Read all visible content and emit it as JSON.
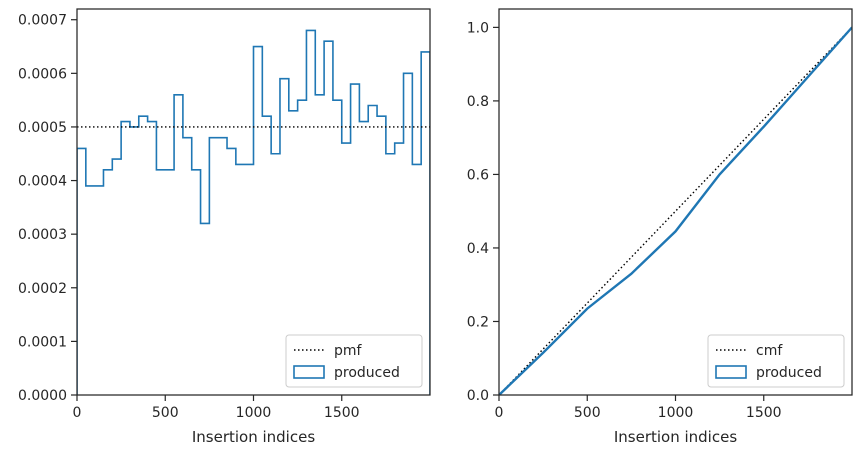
{
  "chart_data": [
    {
      "type": "histogram-step",
      "xlabel": "Insertion indices",
      "ylabel": "",
      "xlim": [
        0,
        2000
      ],
      "ylim": [
        0,
        0.00072
      ],
      "xticks": [
        0,
        500,
        1000,
        1500
      ],
      "xtick_labels": [
        "0",
        "500",
        "1000",
        "1500"
      ],
      "yticks": [
        0,
        0.0001,
        0.0002,
        0.0003,
        0.0004,
        0.0005,
        0.0006,
        0.0007
      ],
      "ytick_labels": [
        "0.0000",
        "0.0001",
        "0.0002",
        "0.0003",
        "0.0004",
        "0.0005",
        "0.0006",
        "0.0007"
      ],
      "bin_width": 50,
      "series": [
        {
          "name": "produced",
          "style": "step",
          "color": "#1f77b4",
          "values": [
            0.00046,
            0.00039,
            0.00039,
            0.00042,
            0.00044,
            0.00051,
            0.0005,
            0.00052,
            0.00051,
            0.00042,
            0.00042,
            0.00056,
            0.00048,
            0.00042,
            0.00032,
            0.00048,
            0.00048,
            0.00046,
            0.00043,
            0.00043,
            0.00065,
            0.00052,
            0.00045,
            0.00059,
            0.00053,
            0.00055,
            0.00068,
            0.00056,
            0.00066,
            0.00055,
            0.00047,
            0.00058,
            0.00051,
            0.00054,
            0.00052,
            0.00045,
            0.00047,
            0.0006,
            0.00043,
            0.00064
          ]
        },
        {
          "name": "pmf",
          "style": "dotted",
          "color": "#000000",
          "x": [
            0,
            2000
          ],
          "y": [
            0.0005,
            0.0005
          ]
        }
      ],
      "legend": {
        "placement": "lower-right",
        "entries": [
          "pmf",
          "produced"
        ]
      }
    },
    {
      "type": "line",
      "xlabel": "Insertion indices",
      "ylabel": "",
      "xlim": [
        0,
        2000
      ],
      "ylim": [
        0,
        1.05
      ],
      "xticks": [
        0,
        500,
        1000,
        1500
      ],
      "xtick_labels": [
        "0",
        "500",
        "1000",
        "1500"
      ],
      "yticks": [
        0,
        0.2,
        0.4,
        0.6,
        0.8,
        1.0
      ],
      "ytick_labels": [
        "0.0",
        "0.2",
        "0.4",
        "0.6",
        "0.8",
        "1.0"
      ],
      "series": [
        {
          "name": "cmf",
          "style": "dotted",
          "color": "#000000",
          "x": [
            0,
            2000
          ],
          "y": [
            0,
            1
          ]
        },
        {
          "name": "produced",
          "style": "solid",
          "color": "#1f77b4",
          "x": [
            0,
            250,
            500,
            750,
            1000,
            1250,
            1500,
            1750,
            2000
          ],
          "y": [
            0,
            0.115,
            0.235,
            0.33,
            0.445,
            0.6,
            0.73,
            0.865,
            1.0
          ]
        }
      ],
      "legend": {
        "placement": "lower-right",
        "entries": [
          "cmf",
          "produced"
        ]
      }
    }
  ]
}
